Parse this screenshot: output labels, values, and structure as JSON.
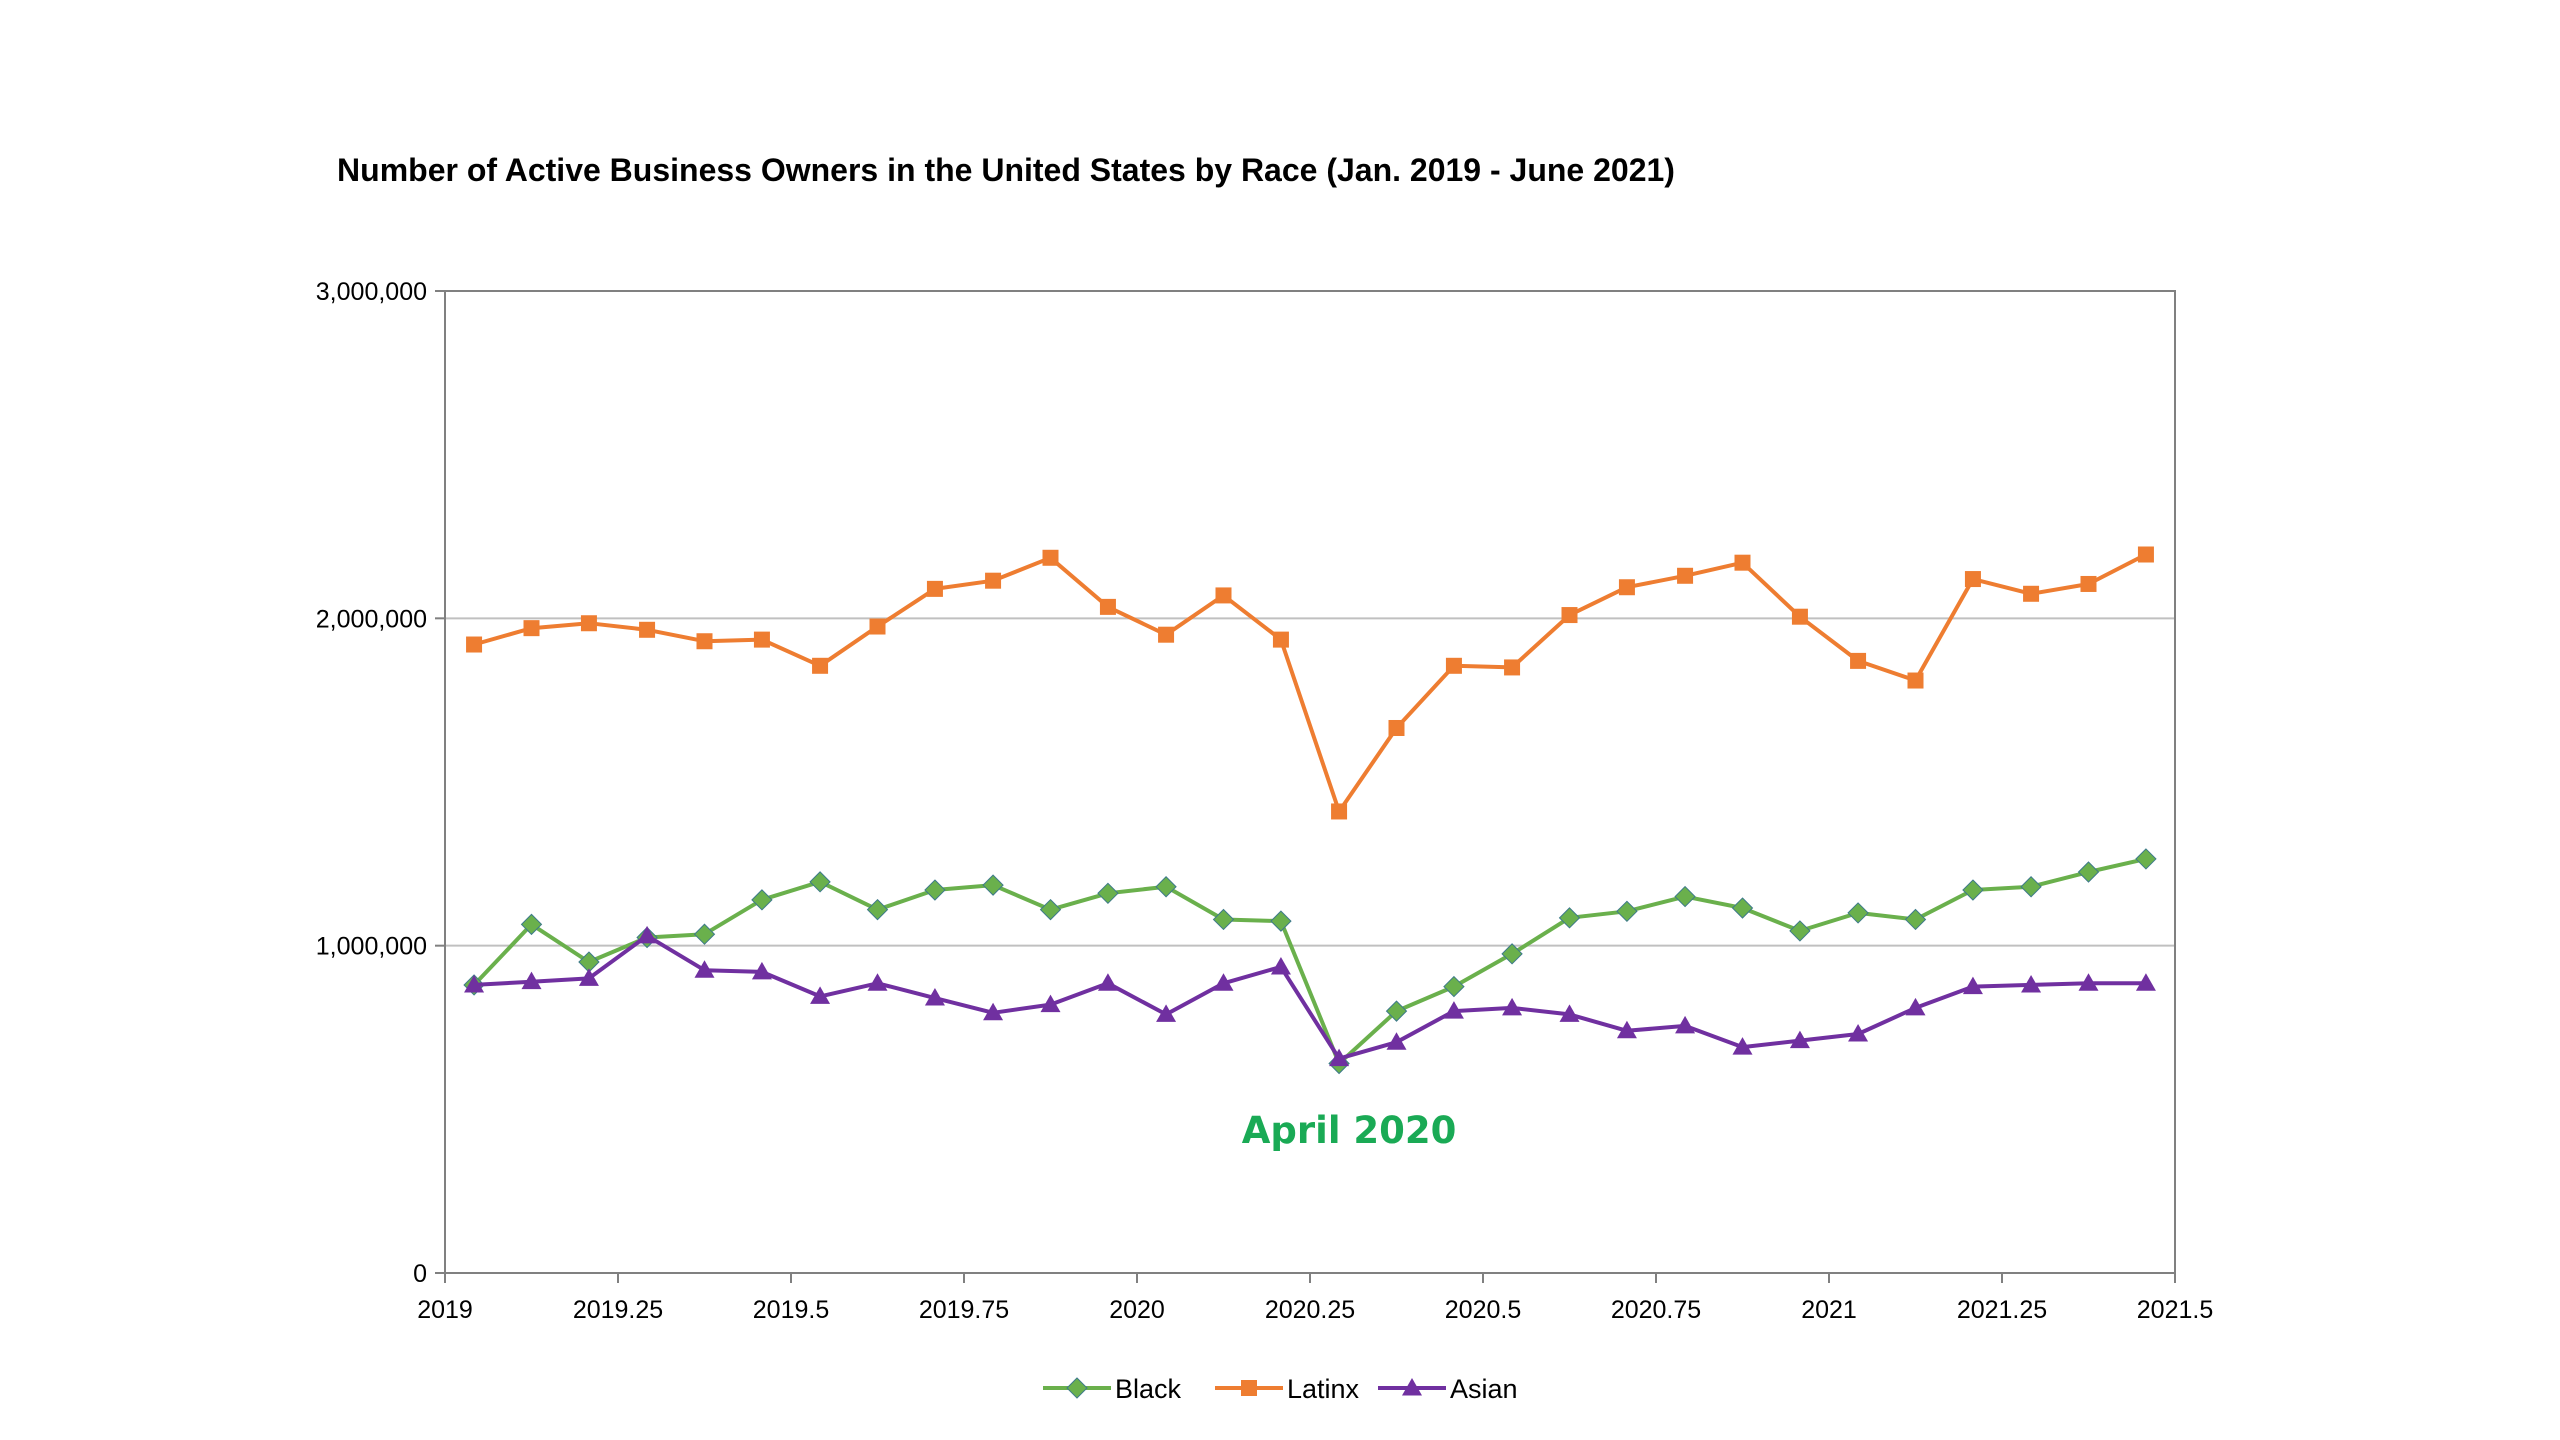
{
  "colors": {
    "background": "#ffffff",
    "axis": "#808080",
    "gridline": "#c0c0c0",
    "text": "#000000"
  },
  "chart_data": {
    "type": "line",
    "title": "Number of Active Business Owners in the United States by Race (Jan. 2019 - June 2021)",
    "xlabel": "",
    "ylabel": "",
    "xlim": [
      2019,
      2021.5
    ],
    "ylim": [
      0,
      3000000
    ],
    "x_ticks": [
      "2019",
      "2019.25",
      "2019.5",
      "2019.75",
      "2020",
      "2020.25",
      "2020.5",
      "2020.75",
      "2021",
      "2021.25",
      "2021.5"
    ],
    "x_tick_values": [
      2019,
      2019.25,
      2019.5,
      2019.75,
      2020,
      2020.25,
      2020.5,
      2020.75,
      2021,
      2021.25,
      2021.5
    ],
    "y_ticks": [
      "0",
      "1,000,000",
      "2,000,000",
      "3,000,000"
    ],
    "y_tick_values": [
      0,
      1000000,
      2000000,
      3000000
    ],
    "grid": "horizontal major gridlines",
    "legend_position": "bottom",
    "x": [
      2019.042,
      2019.125,
      2019.208,
      2019.292,
      2019.375,
      2019.458,
      2019.542,
      2019.625,
      2019.708,
      2019.792,
      2019.875,
      2019.958,
      2020.042,
      2020.125,
      2020.208,
      2020.292,
      2020.375,
      2020.458,
      2020.542,
      2020.625,
      2020.708,
      2020.792,
      2020.875,
      2020.958,
      2021.042,
      2021.125,
      2021.208,
      2021.292,
      2021.375,
      2021.458
    ],
    "series": [
      {
        "name": "Black",
        "color": "#6ab04c",
        "marker": "diamond",
        "values": [
          880000,
          1065000,
          950000,
          1025000,
          1035000,
          1140000,
          1195000,
          1110000,
          1170000,
          1185000,
          1110000,
          1160000,
          1180000,
          1080000,
          1075000,
          640000,
          800000,
          875000,
          975000,
          1085000,
          1105000,
          1150000,
          1115000,
          1045000,
          1100000,
          1080000,
          1170000,
          1180000,
          1225000,
          1265000
        ]
      },
      {
        "name": "Latinx",
        "color": "#ee7d31",
        "marker": "square",
        "values": [
          1920000,
          1970000,
          1985000,
          1965000,
          1930000,
          1935000,
          1855000,
          1975000,
          2090000,
          2115000,
          2185000,
          2035000,
          1950000,
          2070000,
          1935000,
          1410000,
          1665000,
          1855000,
          1850000,
          2010000,
          2095000,
          2130000,
          2170000,
          2005000,
          1870000,
          1810000,
          2120000,
          2075000,
          2105000,
          2195000
        ]
      },
      {
        "name": "Asian",
        "color": "#7030a0",
        "marker": "triangle",
        "values": [
          880000,
          890000,
          900000,
          1030000,
          925000,
          920000,
          845000,
          885000,
          840000,
          795000,
          820000,
          885000,
          790000,
          885000,
          935000,
          655000,
          705000,
          800000,
          810000,
          790000,
          740000,
          755000,
          690000,
          710000,
          730000,
          810000,
          875000,
          880000,
          885000,
          885000
        ]
      }
    ],
    "annotations": [
      {
        "text": "April 2020",
        "color": "#1aaa55",
        "x": 2020.292
      }
    ]
  }
}
